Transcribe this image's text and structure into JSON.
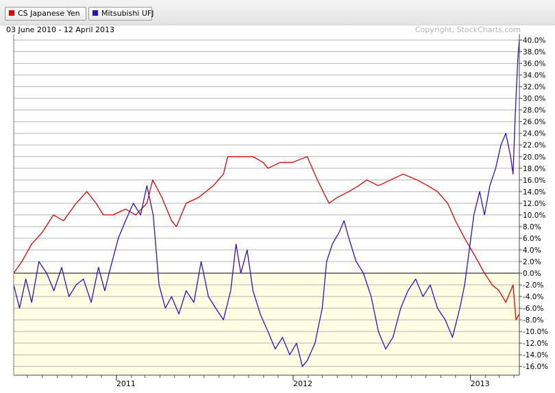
{
  "legend": [
    {
      "label": "CS Japanese Yen",
      "color": "#e00000"
    },
    {
      "label": "Mitsubishi UFJ",
      "color": "#2a10c8"
    }
  ],
  "header": {
    "date_range": "03 June 2010 - 12 April 2013",
    "copyright": "Copyright, StockCharts.com"
  },
  "chart_data": {
    "type": "line",
    "x_range": [
      "2010-06-03",
      "2013-04-12"
    ],
    "ylim": [
      -17.5,
      41
    ],
    "y_unit": "%",
    "y_ticks": [
      "40.0%",
      "38.0%",
      "36.0%",
      "34.0%",
      "32.0%",
      "30.0%",
      "28.0%",
      "26.0%",
      "24.0%",
      "22.0%",
      "20.0%",
      "18.0%",
      "16.0%",
      "14.0%",
      "12.0%",
      "10.0%",
      "8.0%",
      "6.0%",
      "4.0%",
      "2.0%",
      "0.0%",
      "-2.0%",
      "-4.0%",
      "-6.0%",
      "-8.0%",
      "-10.0%",
      "-12.0%",
      "-14.0%",
      "-16.0%"
    ],
    "x_ticks": [
      {
        "label": "2011",
        "date": "2011-01-01"
      },
      {
        "label": "2012",
        "date": "2012-01-01"
      },
      {
        "label": "2013",
        "date": "2013-01-01"
      }
    ],
    "grid": true,
    "zero_line": true,
    "series": [
      {
        "name": "CS Japanese Yen",
        "color": "#e00000",
        "points": [
          [
            "2010-06-03",
            0
          ],
          [
            "2010-06-20",
            2
          ],
          [
            "2010-07-10",
            5
          ],
          [
            "2010-08-01",
            7
          ],
          [
            "2010-08-24",
            10
          ],
          [
            "2010-09-14",
            9
          ],
          [
            "2010-10-10",
            12
          ],
          [
            "2010-11-01",
            14
          ],
          [
            "2010-11-20",
            12
          ],
          [
            "2010-12-05",
            10
          ],
          [
            "2010-12-25",
            10
          ],
          [
            "2011-01-20",
            11
          ],
          [
            "2011-02-10",
            10
          ],
          [
            "2011-03-05",
            12
          ],
          [
            "2011-03-17",
            16
          ],
          [
            "2011-04-05",
            13
          ],
          [
            "2011-04-25",
            9
          ],
          [
            "2011-05-05",
            8
          ],
          [
            "2011-05-25",
            12
          ],
          [
            "2011-06-20",
            13
          ],
          [
            "2011-07-20",
            15
          ],
          [
            "2011-08-10",
            17
          ],
          [
            "2011-08-19",
            20
          ],
          [
            "2011-09-15",
            20
          ],
          [
            "2011-10-10",
            20
          ],
          [
            "2011-10-31",
            19
          ],
          [
            "2011-11-10",
            18
          ],
          [
            "2011-12-05",
            19
          ],
          [
            "2011-12-30",
            19
          ],
          [
            "2012-01-30",
            20
          ],
          [
            "2012-02-20",
            16
          ],
          [
            "2012-03-15",
            12
          ],
          [
            "2012-04-01",
            13
          ],
          [
            "2012-04-25",
            14
          ],
          [
            "2012-05-15",
            15
          ],
          [
            "2012-06-01",
            16
          ],
          [
            "2012-06-25",
            15
          ],
          [
            "2012-07-20",
            16
          ],
          [
            "2012-08-15",
            17
          ],
          [
            "2012-09-13",
            16
          ],
          [
            "2012-10-05",
            15
          ],
          [
            "2012-10-25",
            14
          ],
          [
            "2012-11-15",
            12
          ],
          [
            "2012-12-01",
            9
          ],
          [
            "2012-12-20",
            6
          ],
          [
            "2013-01-10",
            3
          ],
          [
            "2013-01-30",
            0
          ],
          [
            "2013-02-15",
            -2
          ],
          [
            "2013-03-01",
            -3
          ],
          [
            "2013-03-15",
            -5
          ],
          [
            "2013-03-30",
            -2
          ],
          [
            "2013-04-05",
            -8
          ],
          [
            "2013-04-12",
            -7
          ]
        ]
      },
      {
        "name": "Mitsubishi UFJ",
        "color": "#2a10c8",
        "points": [
          [
            "2010-06-03",
            -2
          ],
          [
            "2010-06-15",
            -6
          ],
          [
            "2010-06-28",
            -1
          ],
          [
            "2010-07-10",
            -5
          ],
          [
            "2010-07-25",
            2
          ],
          [
            "2010-08-10",
            0
          ],
          [
            "2010-08-25",
            -3
          ],
          [
            "2010-09-10",
            1
          ],
          [
            "2010-09-25",
            -4
          ],
          [
            "2010-10-10",
            -2
          ],
          [
            "2010-10-25",
            -1
          ],
          [
            "2010-11-10",
            -5
          ],
          [
            "2010-11-25",
            1
          ],
          [
            "2010-12-08",
            -3
          ],
          [
            "2010-12-20",
            1
          ],
          [
            "2011-01-05",
            6
          ],
          [
            "2011-01-20",
            9
          ],
          [
            "2011-02-05",
            12
          ],
          [
            "2011-02-20",
            10
          ],
          [
            "2011-03-05",
            15
          ],
          [
            "2011-03-18",
            10
          ],
          [
            "2011-03-30",
            -2
          ],
          [
            "2011-04-12",
            -6
          ],
          [
            "2011-04-25",
            -4
          ],
          [
            "2011-05-10",
            -7
          ],
          [
            "2011-05-25",
            -3
          ],
          [
            "2011-06-10",
            -5
          ],
          [
            "2011-06-25",
            2
          ],
          [
            "2011-07-10",
            -4
          ],
          [
            "2011-07-25",
            -6
          ],
          [
            "2011-08-10",
            -8
          ],
          [
            "2011-08-25",
            -3
          ],
          [
            "2011-09-05",
            5
          ],
          [
            "2011-09-15",
            0
          ],
          [
            "2011-09-28",
            4
          ],
          [
            "2011-10-10",
            -3
          ],
          [
            "2011-10-25",
            -7
          ],
          [
            "2011-11-10",
            -10
          ],
          [
            "2011-11-25",
            -13
          ],
          [
            "2011-12-10",
            -11
          ],
          [
            "2011-12-25",
            -14
          ],
          [
            "2012-01-08",
            -12
          ],
          [
            "2012-01-20",
            -16
          ],
          [
            "2012-01-30",
            -15
          ],
          [
            "2012-02-15",
            -12
          ],
          [
            "2012-03-01",
            -6
          ],
          [
            "2012-03-10",
            2
          ],
          [
            "2012-03-22",
            5
          ],
          [
            "2012-04-05",
            7
          ],
          [
            "2012-04-15",
            9
          ],
          [
            "2012-04-25",
            6
          ],
          [
            "2012-05-10",
            2
          ],
          [
            "2012-05-25",
            0
          ],
          [
            "2012-06-10",
            -4
          ],
          [
            "2012-06-25",
            -10
          ],
          [
            "2012-07-10",
            -13
          ],
          [
            "2012-07-25",
            -11
          ],
          [
            "2012-08-10",
            -6
          ],
          [
            "2012-08-25",
            -3
          ],
          [
            "2012-09-10",
            -1
          ],
          [
            "2012-09-25",
            -4
          ],
          [
            "2012-10-10",
            -2
          ],
          [
            "2012-10-25",
            -6
          ],
          [
            "2012-11-10",
            -8
          ],
          [
            "2012-11-25",
            -11
          ],
          [
            "2012-12-10",
            -6
          ],
          [
            "2012-12-20",
            -2
          ],
          [
            "2012-12-28",
            3
          ],
          [
            "2013-01-08",
            10
          ],
          [
            "2013-01-20",
            14
          ],
          [
            "2013-01-30",
            10
          ],
          [
            "2013-02-10",
            15
          ],
          [
            "2013-02-22",
            18
          ],
          [
            "2013-03-05",
            22
          ],
          [
            "2013-03-15",
            24
          ],
          [
            "2013-03-25",
            20
          ],
          [
            "2013-03-30",
            17
          ],
          [
            "2013-04-03",
            26
          ],
          [
            "2013-04-06",
            32
          ],
          [
            "2013-04-09",
            37
          ],
          [
            "2013-04-12",
            40
          ]
        ]
      }
    ]
  }
}
